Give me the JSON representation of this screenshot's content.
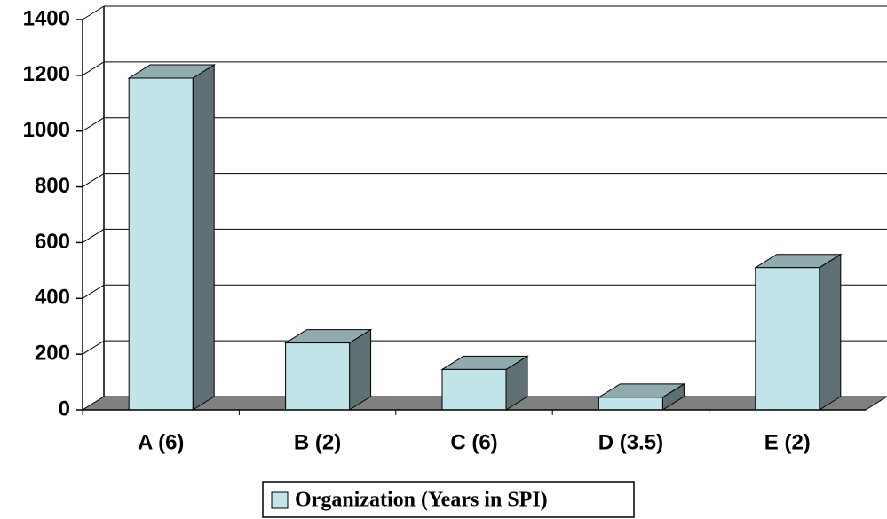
{
  "chart_data": {
    "type": "bar3d",
    "categories": [
      "A (6)",
      "B (2)",
      "C (6)",
      "D (3.5)",
      "E (2)"
    ],
    "series": [
      {
        "name": "Organization (Years in SPI)",
        "color": "#c0e4e8",
        "values": [
          1190,
          240,
          145,
          45,
          510
        ]
      }
    ],
    "ylim": [
      0,
      1400
    ],
    "yticks": [
      0,
      200,
      400,
      600,
      800,
      1000,
      1200,
      1400
    ],
    "grid": true,
    "legend": "bottom"
  }
}
